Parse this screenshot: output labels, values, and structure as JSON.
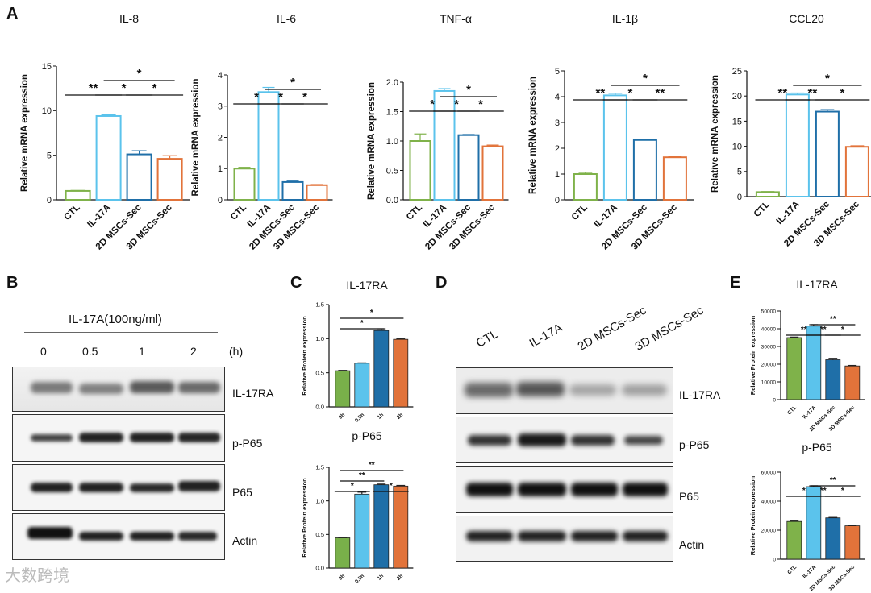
{
  "panel_letters": {
    "A": "A",
    "B": "B",
    "C": "C",
    "D": "D",
    "E": "E"
  },
  "colors": {
    "ctl": "#7fb24a",
    "il17a": "#5bc3ec",
    "mscs2d": "#1f6fa8",
    "mscs3d": "#e2733a",
    "h0": "#79b04a",
    "h05": "#5bc3ec",
    "h1": "#1f6fa8",
    "h2": "#e2733a"
  },
  "panel_B": {
    "treatment": "IL-17A(100ng/ml)",
    "timepoints": [
      "0",
      "0.5",
      "1",
      "2"
    ],
    "unit": "(h)",
    "blots": [
      "IL-17RA",
      "p-P65",
      "P65",
      "Actin"
    ]
  },
  "panel_D": {
    "lanes": [
      "CTL",
      "IL-17A",
      "2D MSCs-Sec",
      "3D MSCs-Sec"
    ],
    "blots": [
      "IL-17RA",
      "p-P65",
      "P65",
      "Actin"
    ]
  },
  "watermark": "大数跨境",
  "chart_data": [
    {
      "id": "A1",
      "type": "bar",
      "title": "IL-8",
      "ylabel": "Relative mRNA expression",
      "categories": [
        "CTL",
        "IL-17A",
        "2D MSCs-Sec",
        "3D MSCs-Sec"
      ],
      "values": [
        1.0,
        9.4,
        5.1,
        4.6
      ],
      "errors": [
        0.05,
        0.12,
        0.4,
        0.35
      ],
      "ylim": [
        0,
        15
      ],
      "yticks": [
        "0",
        "5",
        "10",
        "15"
      ],
      "style": "hollow",
      "sig": [
        {
          "a": 0,
          "b": 1,
          "label": "**"
        },
        {
          "a": 1,
          "b": 2,
          "label": "*"
        },
        {
          "a": 2,
          "b": 3,
          "label": "*"
        },
        {
          "a": 1,
          "b": 3,
          "label": "*"
        }
      ]
    },
    {
      "id": "A2",
      "type": "bar",
      "title": "IL-6",
      "ylabel": "Relative mRNA expression",
      "categories": [
        "CTL",
        "IL-17A",
        "2D MSCs-Sec",
        "3D MSCs-Sec"
      ],
      "values": [
        1.0,
        3.45,
        0.57,
        0.47
      ],
      "errors": [
        0.04,
        0.15,
        0.03,
        0.02
      ],
      "ylim": [
        0,
        4
      ],
      "yticks": [
        "0",
        "1",
        "2",
        "3",
        "4"
      ],
      "style": "hollow",
      "sig": [
        {
          "a": 0,
          "b": 1,
          "label": "*"
        },
        {
          "a": 1,
          "b": 2,
          "label": "*"
        },
        {
          "a": 2,
          "b": 3,
          "label": "*"
        },
        {
          "a": 1,
          "b": 3,
          "label": "*"
        }
      ]
    },
    {
      "id": "A3",
      "type": "bar",
      "title": "TNF-α",
      "ylabel": "Relative mRNA expression",
      "categories": [
        "CTL",
        "IL-17A",
        "2D MSCs-Sec",
        "3D MSCs-Sec"
      ],
      "values": [
        1.0,
        1.85,
        1.1,
        0.91
      ],
      "errors": [
        0.12,
        0.04,
        0.01,
        0.02
      ],
      "ylim": [
        0,
        2.0
      ],
      "yticks": [
        "0.0",
        "0.5",
        "1.0",
        "1.5",
        "2.0"
      ],
      "style": "hollow",
      "sig": [
        {
          "a": 0,
          "b": 1,
          "label": "*"
        },
        {
          "a": 1,
          "b": 2,
          "label": "*"
        },
        {
          "a": 2,
          "b": 3,
          "label": "*"
        },
        {
          "a": 1,
          "b": 3,
          "label": "*"
        }
      ]
    },
    {
      "id": "A4",
      "type": "bar",
      "title": "IL-1β",
      "ylabel": "Relative mRNA expression",
      "categories": [
        "CTL",
        "IL-17A",
        "2D MSCs-Sec",
        "3D MSCs-Sec"
      ],
      "values": [
        1.0,
        4.05,
        2.32,
        1.65
      ],
      "errors": [
        0.06,
        0.08,
        0.03,
        0.03
      ],
      "ylim": [
        0,
        5
      ],
      "yticks": [
        "0",
        "1",
        "2",
        "3",
        "4",
        "5"
      ],
      "style": "hollow",
      "sig": [
        {
          "a": 0,
          "b": 1,
          "label": "**"
        },
        {
          "a": 1,
          "b": 2,
          "label": "*"
        },
        {
          "a": 2,
          "b": 3,
          "label": "**"
        },
        {
          "a": 1,
          "b": 3,
          "label": "*"
        }
      ]
    },
    {
      "id": "A5",
      "type": "bar",
      "title": "CCL20",
      "ylabel": "Relative mRNA expression",
      "categories": [
        "CTL",
        "IL-17A",
        "2D MSCs-Sec",
        "3D MSCs-Sec"
      ],
      "values": [
        0.9,
        20.3,
        16.9,
        9.9
      ],
      "errors": [
        0.1,
        0.3,
        0.4,
        0.2
      ],
      "ylim": [
        0,
        25
      ],
      "yticks": [
        "0",
        "5",
        "10",
        "15",
        "20",
        "25"
      ],
      "style": "hollow",
      "sig": [
        {
          "a": 0,
          "b": 1,
          "label": "**"
        },
        {
          "a": 1,
          "b": 2,
          "label": "**"
        },
        {
          "a": 2,
          "b": 3,
          "label": "*"
        },
        {
          "a": 1,
          "b": 3,
          "label": "*"
        }
      ]
    },
    {
      "id": "C1",
      "type": "bar",
      "title": "IL-17RA",
      "ylabel": "Relative Protein expression",
      "categories": [
        "0h",
        "0.5h",
        "1h",
        "2h"
      ],
      "values": [
        0.53,
        0.64,
        1.12,
        0.99
      ],
      "errors": [
        0.005,
        0.005,
        0.025,
        0.01
      ],
      "ylim": [
        0,
        1.5
      ],
      "yticks": [
        "0.0",
        "0.5",
        "1.0",
        "1.5"
      ],
      "style": "filled",
      "sig": [
        {
          "a": 0,
          "b": 2,
          "label": "*"
        },
        {
          "a": 0,
          "b": 3,
          "label": "*"
        }
      ]
    },
    {
      "id": "C2",
      "type": "bar",
      "title": "p-P65",
      "ylabel": "Relative Protein expression",
      "categories": [
        "0h",
        "0.5h",
        "1h",
        "2h"
      ],
      "values": [
        0.45,
        1.1,
        1.24,
        1.22
      ],
      "errors": [
        0.005,
        0.03,
        0.01,
        0.01
      ],
      "ylim": [
        0,
        1.5
      ],
      "yticks": [
        "0.0",
        "0.5",
        "1.0",
        "1.5"
      ],
      "style": "filled",
      "sig": [
        {
          "a": 0,
          "b": 1,
          "label": "*"
        },
        {
          "a": 0,
          "b": 2,
          "label": "**"
        },
        {
          "a": 2,
          "b": 3,
          "label": "*"
        },
        {
          "a": 0,
          "b": 3,
          "label": "**"
        }
      ]
    },
    {
      "id": "E1",
      "type": "bar",
      "title": "IL-17RA",
      "ylabel": "Relative Protein expression",
      "categories": [
        "CTL",
        "IL-17A",
        "2D MSCs-Sec",
        "3D MSCs-Sec"
      ],
      "values": [
        35000,
        41500,
        22500,
        19000
      ],
      "errors": [
        300,
        800,
        800,
        300
      ],
      "ylim": [
        0,
        50000
      ],
      "yticks": [
        "0",
        "10000",
        "20000",
        "30000",
        "40000",
        "50000"
      ],
      "style": "filled",
      "sig": [
        {
          "a": 0,
          "b": 1,
          "label": "**"
        },
        {
          "a": 1,
          "b": 2,
          "label": "**"
        },
        {
          "a": 2,
          "b": 3,
          "label": "*"
        },
        {
          "a": 1,
          "b": 3,
          "label": "**"
        }
      ]
    },
    {
      "id": "E2",
      "type": "bar",
      "title": "p-P65",
      "ylabel": "Relative Protein expression",
      "categories": [
        "CTL",
        "IL-17A",
        "2D MSCs-Sec",
        "3D MSCs-Sec"
      ],
      "values": [
        26000,
        50000,
        28500,
        23000
      ],
      "errors": [
        300,
        600,
        300,
        300
      ],
      "ylim": [
        0,
        60000
      ],
      "yticks": [
        "0",
        "20000",
        "40000",
        "60000"
      ],
      "style": "filled",
      "sig": [
        {
          "a": 0,
          "b": 1,
          "label": "*"
        },
        {
          "a": 1,
          "b": 2,
          "label": "**"
        },
        {
          "a": 2,
          "b": 3,
          "label": "*"
        },
        {
          "a": 1,
          "b": 3,
          "label": "**"
        }
      ]
    }
  ]
}
